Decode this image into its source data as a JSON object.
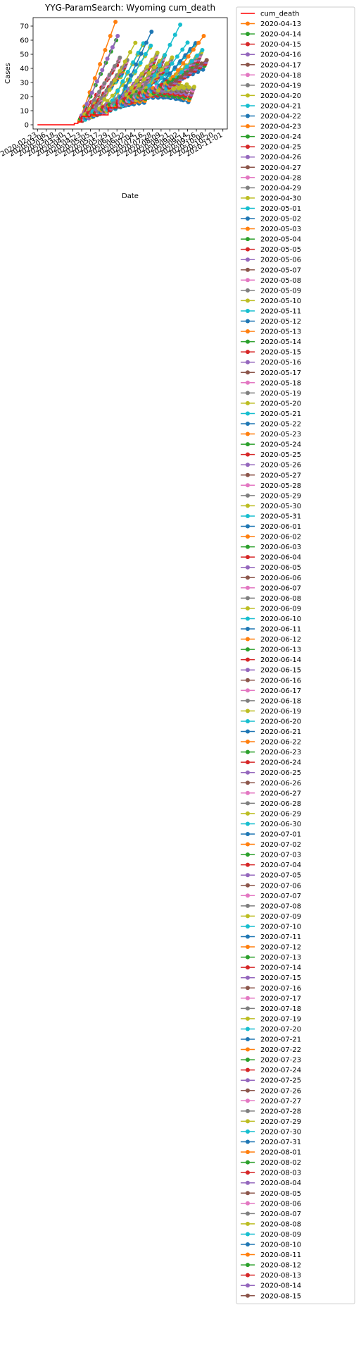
{
  "chart_data": {
    "type": "line",
    "title": "YYG-ParamSearch: Wyoming cum_death",
    "xlabel": "Date",
    "ylabel": "Cases",
    "ylim": [
      -3,
      76
    ],
    "xlim": [
      "2020-02-17",
      "2020-11-07"
    ],
    "y_ticks": [
      0,
      10,
      20,
      30,
      40,
      50,
      60,
      70
    ],
    "x_ticks": [
      "2020-02-23",
      "2020-03-06",
      "2020-03-18",
      "2020-03-30",
      "2020-04-11",
      "2020-04-23",
      "2020-05-05",
      "2020-05-17",
      "2020-05-29",
      "2020-06-10",
      "2020-06-22",
      "2020-07-04",
      "2020-07-16",
      "2020-07-28",
      "2020-08-09",
      "2020-08-21",
      "2020-09-02",
      "2020-09-14",
      "2020-09-26",
      "2020-10-08",
      "2020-10-20",
      "2020-11-01"
    ],
    "grid": false,
    "legend_position": "outside-right",
    "palette": [
      "#1f77b4",
      "#ff7f0e",
      "#2ca02c",
      "#d62728",
      "#9467bd",
      "#8c564b",
      "#e377c2",
      "#7f7f7f",
      "#bcbd22",
      "#17becf"
    ],
    "actual": {
      "name": "cum_death",
      "color": "#ff0000",
      "x": [
        "2020-02-23",
        "2020-03-06",
        "2020-03-18",
        "2020-03-30",
        "2020-04-11",
        "2020-04-13",
        "2020-04-14",
        "2020-04-18",
        "2020-04-20",
        "2020-04-23",
        "2020-05-05",
        "2020-05-17",
        "2020-05-29",
        "2020-06-10"
      ],
      "y": [
        0,
        0,
        0,
        0,
        0,
        1,
        1,
        2,
        2,
        6,
        7,
        7,
        12,
        18
      ]
    },
    "forecast_series_names": [
      "2020-04-13",
      "2020-04-14",
      "2020-04-15",
      "2020-04-16",
      "2020-04-17",
      "2020-04-18",
      "2020-04-19",
      "2020-04-20",
      "2020-04-21",
      "2020-04-22",
      "2020-04-23",
      "2020-04-24",
      "2020-04-25",
      "2020-04-26",
      "2020-04-27",
      "2020-04-28",
      "2020-04-29",
      "2020-04-30",
      "2020-05-01",
      "2020-05-02",
      "2020-05-03",
      "2020-05-04",
      "2020-05-05",
      "2020-05-06",
      "2020-05-07",
      "2020-05-08",
      "2020-05-09",
      "2020-05-10",
      "2020-05-11",
      "2020-05-12",
      "2020-05-13",
      "2020-05-14",
      "2020-05-15",
      "2020-05-16",
      "2020-05-17",
      "2020-05-18",
      "2020-05-19",
      "2020-05-20",
      "2020-05-21",
      "2020-05-22",
      "2020-05-23",
      "2020-05-24",
      "2020-05-25",
      "2020-05-26",
      "2020-05-27",
      "2020-05-28",
      "2020-05-29",
      "2020-05-30",
      "2020-05-31",
      "2020-06-01",
      "2020-06-02",
      "2020-06-03",
      "2020-06-04",
      "2020-06-05",
      "2020-06-06",
      "2020-06-07",
      "2020-06-08",
      "2020-06-09",
      "2020-06-10",
      "2020-06-11",
      "2020-06-12",
      "2020-06-13",
      "2020-06-14",
      "2020-06-15",
      "2020-06-16",
      "2020-06-17",
      "2020-06-18",
      "2020-06-19",
      "2020-06-20",
      "2020-06-21",
      "2020-06-22",
      "2020-06-23",
      "2020-06-24",
      "2020-06-25",
      "2020-06-26",
      "2020-06-27",
      "2020-06-28",
      "2020-06-29",
      "2020-06-30",
      "2020-07-01",
      "2020-07-02",
      "2020-07-03",
      "2020-07-04",
      "2020-07-05",
      "2020-07-06",
      "2020-07-07",
      "2020-07-08",
      "2020-07-09",
      "2020-07-10",
      "2020-07-11",
      "2020-07-12",
      "2020-07-13",
      "2020-07-14",
      "2020-07-15",
      "2020-07-16",
      "2020-07-17",
      "2020-07-18",
      "2020-07-19",
      "2020-07-20",
      "2020-07-21",
      "2020-07-22",
      "2020-07-23",
      "2020-07-24",
      "2020-07-25",
      "2020-07-26",
      "2020-07-27",
      "2020-07-28",
      "2020-07-29",
      "2020-07-30",
      "2020-07-31",
      "2020-08-01",
      "2020-08-02",
      "2020-08-03",
      "2020-08-04",
      "2020-08-05",
      "2020-08-06",
      "2020-08-07",
      "2020-08-08",
      "2020-08-09",
      "2020-08-10",
      "2020-08-11",
      "2020-08-12",
      "2020-08-13",
      "2020-08-14",
      "2020-08-15"
    ],
    "forecast_points_per_series": 8,
    "forecast_step_days": 7,
    "highlighted_series": [
      {
        "name": "2020-04-13",
        "end_value": 73
      },
      {
        "name": "2020-04-14",
        "end_value": 60
      },
      {
        "name": "2020-04-16",
        "end_value": 63
      },
      {
        "name": "2020-06-01",
        "end_value": 66
      },
      {
        "name": "2020-07-10",
        "end_value": 71
      },
      {
        "name": "2020-08-11",
        "end_value": 63
      }
    ],
    "forecast_end_value_range": [
      15,
      73
    ]
  }
}
